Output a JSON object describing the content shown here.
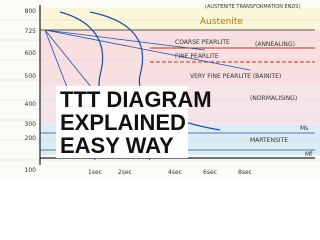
{
  "diagram": {
    "title_lines": [
      "TTT DIAGRAM",
      "EXPLAINED",
      "EASY WAY"
    ],
    "y_labels": [
      "800",
      "725",
      "600",
      "500",
      "400",
      "300",
      "200",
      "100"
    ],
    "x_labels": [
      "1sec",
      "2sec",
      "4sec",
      "6sec",
      "8sec"
    ],
    "regions": [
      "Austenite",
      "COARSE PEARLITE",
      "(ANNEALING)",
      "FINE PEARLITE",
      "VERY FINE PEARLITE (BAINITE)",
      "(NORMALISING)",
      "MARTENSITE"
    ],
    "notes": [
      "(AUSTENITE TRANSFORMATION ENDS)",
      "Ms",
      "Mf"
    ]
  }
}
